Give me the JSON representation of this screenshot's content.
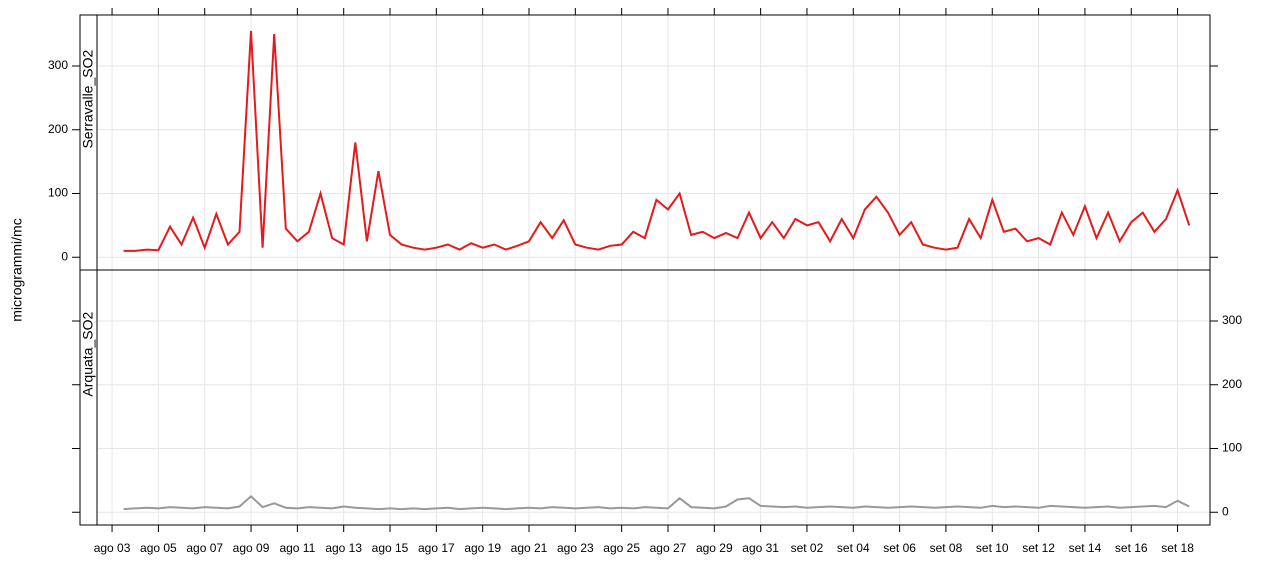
{
  "chart_data": {
    "type": "line",
    "y_label": "microgrammi/mc",
    "x": [
      0.5,
      1,
      1.5,
      2,
      2.5,
      3,
      3.5,
      4,
      4.5,
      5,
      5.5,
      6,
      6.5,
      7,
      7.5,
      8,
      8.5,
      9,
      9.5,
      10,
      10.5,
      11,
      11.5,
      12,
      12.5,
      13,
      13.5,
      14,
      14.5,
      15,
      15.5,
      16,
      16.5,
      17,
      17.5,
      18,
      18.5,
      19,
      19.5,
      20,
      20.5,
      21,
      21.5,
      22,
      22.5,
      23,
      23.5,
      24,
      24.5,
      25,
      25.5,
      26,
      26.5,
      27,
      27.5,
      28,
      28.5,
      29,
      29.5,
      30,
      30.5,
      31,
      31.5,
      32,
      32.5,
      33,
      33.5,
      34,
      34.5,
      35,
      35.5,
      36,
      36.5,
      37,
      37.5,
      38,
      38.5,
      39,
      39.5,
      40,
      40.5,
      41,
      41.5,
      42,
      42.5,
      43,
      43.5,
      44,
      44.5,
      45,
      45.5,
      46,
      46.5
    ],
    "series": [
      {
        "name": "Serravalle_SO2",
        "color": "#e41a1c",
        "values": [
          10,
          10,
          12,
          11,
          48,
          20,
          62,
          15,
          68,
          20,
          40,
          355,
          15,
          350,
          45,
          25,
          40,
          100,
          30,
          20,
          180,
          25,
          135,
          35,
          20,
          15,
          12,
          15,
          20,
          12,
          22,
          15,
          20,
          12,
          18,
          25,
          55,
          30,
          58,
          20,
          15,
          12,
          18,
          20,
          40,
          30,
          90,
          75,
          100,
          35,
          40,
          30,
          38,
          30,
          70,
          30,
          55,
          30,
          60,
          50,
          55,
          25,
          60,
          30,
          75,
          95,
          70,
          35,
          55,
          20,
          15,
          12,
          15,
          60,
          30,
          90,
          40,
          45,
          25,
          30,
          20,
          70,
          35,
          80,
          30,
          70,
          25,
          55,
          70,
          40,
          60,
          105,
          50
        ]
      },
      {
        "name": "Arquata_SO2",
        "color": "#999999",
        "values": [
          5,
          6,
          7,
          6,
          8,
          7,
          6,
          8,
          7,
          6,
          9,
          25,
          8,
          14,
          7,
          6,
          8,
          7,
          6,
          9,
          7,
          6,
          5,
          6,
          5,
          6,
          5,
          6,
          7,
          5,
          6,
          7,
          6,
          5,
          6,
          7,
          6,
          8,
          7,
          6,
          7,
          8,
          6,
          7,
          6,
          8,
          7,
          6,
          22,
          8,
          7,
          6,
          9,
          20,
          22,
          10,
          9,
          8,
          9,
          7,
          8,
          9,
          8,
          7,
          9,
          8,
          7,
          8,
          9,
          8,
          7,
          8,
          9,
          8,
          7,
          10,
          8,
          9,
          8,
          7,
          10,
          9,
          8,
          7,
          8,
          9,
          7,
          8,
          9,
          10,
          8,
          18,
          9
        ]
      }
    ],
    "xlim": [
      -0.65,
      47.4
    ],
    "xticks": [
      {
        "value": 0,
        "label": "ago 03"
      },
      {
        "value": 2,
        "label": "ago 05"
      },
      {
        "value": 4,
        "label": "ago 07"
      },
      {
        "value": 6,
        "label": "ago 09"
      },
      {
        "value": 8,
        "label": "ago 11"
      },
      {
        "value": 10,
        "label": "ago 13"
      },
      {
        "value": 12,
        "label": "ago 15"
      },
      {
        "value": 14,
        "label": "ago 17"
      },
      {
        "value": 16,
        "label": "ago 19"
      },
      {
        "value": 18,
        "label": "ago 21"
      },
      {
        "value": 20,
        "label": "ago 23"
      },
      {
        "value": 22,
        "label": "ago 25"
      },
      {
        "value": 24,
        "label": "ago 27"
      },
      {
        "value": 26,
        "label": "ago 29"
      },
      {
        "value": 28,
        "label": "ago 31"
      },
      {
        "value": 30,
        "label": "set 02"
      },
      {
        "value": 32,
        "label": "set 04"
      },
      {
        "value": 34,
        "label": "set 06"
      },
      {
        "value": 36,
        "label": "set 08"
      },
      {
        "value": 38,
        "label": "set 10"
      },
      {
        "value": 40,
        "label": "set 12"
      },
      {
        "value": 42,
        "label": "set 14"
      },
      {
        "value": 44,
        "label": "set 16"
      },
      {
        "value": 46,
        "label": "set 18"
      }
    ],
    "ylim": [
      -20,
      380
    ],
    "yticks": [
      0,
      100,
      200,
      300
    ],
    "grid": true
  }
}
